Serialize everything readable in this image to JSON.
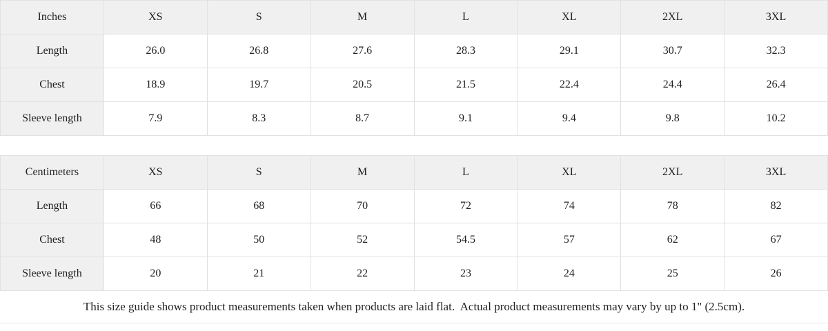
{
  "colors": {
    "cell-bg": "#f0f0f0",
    "border": "#e1e1e1",
    "text": "#212121",
    "page-bg": "#ffffff"
  },
  "size_guide": {
    "sizes": [
      "XS",
      "S",
      "M",
      "L",
      "XL",
      "2XL",
      "3XL"
    ],
    "inches": {
      "unit_label": "Inches",
      "rows": [
        {
          "label": "Length",
          "values": [
            "26.0",
            "26.8",
            "27.6",
            "28.3",
            "29.1",
            "30.7",
            "32.3"
          ]
        },
        {
          "label": "Chest",
          "values": [
            "18.9",
            "19.7",
            "20.5",
            "21.5",
            "22.4",
            "24.4",
            "26.4"
          ]
        },
        {
          "label": "Sleeve length",
          "values": [
            "7.9",
            "8.3",
            "8.7",
            "9.1",
            "9.4",
            "9.8",
            "10.2"
          ]
        }
      ]
    },
    "centimeters": {
      "unit_label": "Centimeters",
      "rows": [
        {
          "label": "Length",
          "values": [
            "66",
            "68",
            "70",
            "72",
            "74",
            "78",
            "82"
          ]
        },
        {
          "label": "Chest",
          "values": [
            "48",
            "50",
            "52",
            "54.5",
            "57",
            "62",
            "67"
          ]
        },
        {
          "label": "Sleeve length",
          "values": [
            "20",
            "21",
            "22",
            "23",
            "24",
            "25",
            "26"
          ]
        }
      ]
    },
    "footnote": "This size guide shows product measurements taken when products are laid flat.  Actual product measurements may vary by up to 1\" (2.5cm)."
  }
}
